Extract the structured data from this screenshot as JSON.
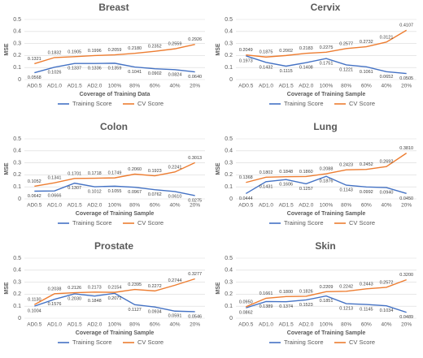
{
  "chart_data": [
    {
      "type": "line",
      "title": "Breast",
      "x_label": "Coverage of Training Data",
      "y_label": "MSE",
      "categories": [
        "AD0.5",
        "AD1.0",
        "AD1.5",
        "AD2.0",
        "100%",
        "80%",
        "60%",
        "40%",
        "20%"
      ],
      "series": [
        {
          "name": "Training Score",
          "color": "#4472c4",
          "values": [
            0.0568,
            0.1026,
            0.1337,
            0.1336,
            0.1359,
            0.1041,
            0.0902,
            0.0824,
            0.064
          ],
          "value_labels": [
            "0.0568",
            "0.1026",
            "0.1337",
            "0.1336",
            "0.1359",
            "0.1041",
            "0.0902",
            "0.0824",
            "0.0640"
          ]
        },
        {
          "name": "CV Score",
          "color": "#ed7d31",
          "values": [
            0.1321,
            0.1832,
            0.1905,
            0.1996,
            0.2059,
            0.218,
            0.2352,
            0.2559,
            0.2926
          ],
          "value_labels": [
            "0.1321",
            "0.1832",
            "0.1905",
            "0.1996",
            "0.2059",
            "0.2180",
            "0.2352",
            "0.2559",
            "0.2926"
          ]
        }
      ],
      "ylim": [
        0,
        0.5
      ],
      "yticks": [
        0,
        0.1,
        0.2,
        0.3,
        0.4,
        0.5
      ],
      "grid": true,
      "legend": "bottom"
    },
    {
      "type": "line",
      "title": "Cervix",
      "x_label": "Coverage of Training Sample",
      "y_label": "MSE",
      "categories": [
        "AD0.5",
        "AD1.0",
        "AD1.5",
        "AD2.0",
        "100%",
        "80%",
        "60%",
        "40%",
        "20%"
      ],
      "series": [
        {
          "name": "Training Score",
          "color": "#4472c4",
          "values": [
            0.1973,
            0.1432,
            0.1115,
            0.1408,
            0.1751,
            0.1221,
            0.1061,
            0.0652,
            0.0505
          ],
          "value_labels": [
            "0.1973",
            "0.1432",
            "0.1115",
            "0.1408",
            "0.1751",
            "0.1221",
            "0.1061",
            "0.0652",
            "0.0505"
          ]
        },
        {
          "name": "CV Score",
          "color": "#ed7d31",
          "values": [
            0.2049,
            0.1875,
            0.2002,
            0.2183,
            0.2275,
            0.2577,
            0.2732,
            0.3121,
            0.4107
          ],
          "value_labels": [
            "0.2049",
            "0.1875",
            "0.2002",
            "0.2183",
            "0.2275",
            "0.2577",
            "0.2732",
            "0.3121",
            "0.4107"
          ]
        }
      ],
      "ylim": [
        0,
        0.5
      ],
      "yticks": [
        0,
        0.1,
        0.2,
        0.3,
        0.4,
        0.5
      ],
      "grid": true,
      "legend": "bottom"
    },
    {
      "type": "line",
      "title": "Colon",
      "x_label": "Coverage of Training Sample",
      "y_label": "MSE",
      "categories": [
        "AD0.5",
        "AD1.0",
        "AD1.5",
        "AD2.0",
        "100%",
        "80%",
        "60%",
        "40%",
        "20%"
      ],
      "series": [
        {
          "name": "Training Score",
          "color": "#4472c4",
          "values": [
            0.0642,
            0.0666,
            0.1307,
            0.1012,
            0.1055,
            0.0967,
            0.0762,
            0.061,
            0.0275
          ],
          "value_labels": [
            "0.0642",
            "0.0666",
            "0.1307",
            "0.1012",
            "0.1055",
            "0.0967",
            "0.0762",
            "0.0610",
            "0.0275"
          ]
        },
        {
          "name": "CV Score",
          "color": "#ed7d31",
          "values": [
            0.1052,
            0.1341,
            0.1701,
            0.1718,
            0.1749,
            0.206,
            0.1923,
            0.2241,
            0.3013
          ],
          "value_labels": [
            "0.1052",
            "0.1341",
            "0.1701",
            "0.1718",
            "0.1749",
            "0.2060",
            "0.1923",
            "0.2241",
            "0.3013"
          ]
        }
      ],
      "ylim": [
        0,
        0.5
      ],
      "yticks": [
        0,
        0.1,
        0.2,
        0.3,
        0.4,
        0.5
      ],
      "grid": true,
      "legend": "bottom"
    },
    {
      "type": "line",
      "title": "Lung",
      "x_label": "Coverage of Training Sample",
      "y_label": "MSE",
      "categories": [
        "AD0.5",
        "AD1.0",
        "AD1.5",
        "AD2.0",
        "100%",
        "80%",
        "60%",
        "40%",
        "20%"
      ],
      "series": [
        {
          "name": "Training Score",
          "color": "#4472c4",
          "values": [
            0.0444,
            0.1431,
            0.1606,
            0.1257,
            0.1876,
            0.1143,
            0.0992,
            0.094,
            0.045
          ],
          "value_labels": [
            "0.0444",
            "0.1431",
            "0.1606",
            "0.1257",
            "0.1876",
            "0.1143",
            "0.0992",
            "0.0940",
            "0.0450"
          ]
        },
        {
          "name": "CV Score",
          "color": "#ed7d31",
          "values": [
            0.1368,
            0.1802,
            0.1848,
            0.186,
            0.2088,
            0.2423,
            0.2452,
            0.2692,
            0.381
          ],
          "value_labels": [
            "0.1368",
            "0.1802",
            "0.1848",
            "0.1860",
            "0.2088",
            "0.2423",
            "0.2452",
            "0.2692",
            "0.3810"
          ]
        }
      ],
      "ylim": [
        0,
        0.5
      ],
      "yticks": [
        0,
        0.1,
        0.2,
        0.3,
        0.4,
        0.5
      ],
      "grid": true,
      "legend": "bottom"
    },
    {
      "type": "line",
      "title": "Prostate",
      "x_label": "Coverage of Training Sample",
      "y_label": "MSE",
      "categories": [
        "AD0.5",
        "AD1.0",
        "AD1.5",
        "AD2.0",
        "100%",
        "80%",
        "60%",
        "40%",
        "20%"
      ],
      "series": [
        {
          "name": "Training Score",
          "color": "#4472c4",
          "values": [
            0.1004,
            0.1576,
            0.203,
            0.1848,
            0.2071,
            0.1127,
            0.0934,
            0.0591,
            0.0546
          ],
          "value_labels": [
            "0.1004",
            "0.1576",
            "0.2030",
            "0.1848",
            "0.2071",
            "0.1127",
            "0.0934",
            "0.0591",
            "0.0546"
          ]
        },
        {
          "name": "CV Score",
          "color": "#ed7d31",
          "values": [
            0.113,
            0.2038,
            0.2126,
            0.2173,
            0.2154,
            0.2395,
            0.2272,
            0.2744,
            0.3277
          ],
          "value_labels": [
            "0.1130",
            "0.2038",
            "0.2126",
            "0.2173",
            "0.2154",
            "0.2395",
            "0.2272",
            "0.2744",
            "0.3277"
          ]
        }
      ],
      "ylim": [
        0,
        0.5
      ],
      "yticks": [
        0,
        0.1,
        0.2,
        0.3,
        0.4,
        0.5
      ],
      "grid": true,
      "legend": "bottom"
    },
    {
      "type": "line",
      "title": "Skin",
      "x_label": "Coverage of Training Sample",
      "y_label": "MSE",
      "categories": [
        "AD0.5",
        "AD1.0",
        "AD1.5",
        "AD2.0",
        "100%",
        "80%",
        "60%",
        "40%",
        "20%"
      ],
      "series": [
        {
          "name": "Training Score",
          "color": "#4472c4",
          "values": [
            0.0862,
            0.1389,
            0.1374,
            0.1523,
            0.1851,
            0.1213,
            0.1145,
            0.1034,
            0.0489
          ],
          "value_labels": [
            "0.0862",
            "0.1389",
            "0.1374",
            "0.1523",
            "0.1851",
            "0.1213",
            "0.1145",
            "0.1034",
            "0.0489"
          ]
        },
        {
          "name": "CV Score",
          "color": "#ed7d31",
          "values": [
            0.095,
            0.1661,
            0.18,
            0.1826,
            0.2209,
            0.2242,
            0.2443,
            0.2572,
            0.32
          ],
          "value_labels": [
            "0.0950",
            "0.1661",
            "0.1800",
            "0.1826",
            "0.2209",
            "0.2242",
            "0.2443",
            "0.2572",
            "0.3200"
          ]
        }
      ],
      "ylim": [
        0,
        0.5
      ],
      "yticks": [
        0,
        0.1,
        0.2,
        0.3,
        0.4,
        0.5
      ],
      "grid": true,
      "legend": "bottom"
    }
  ]
}
